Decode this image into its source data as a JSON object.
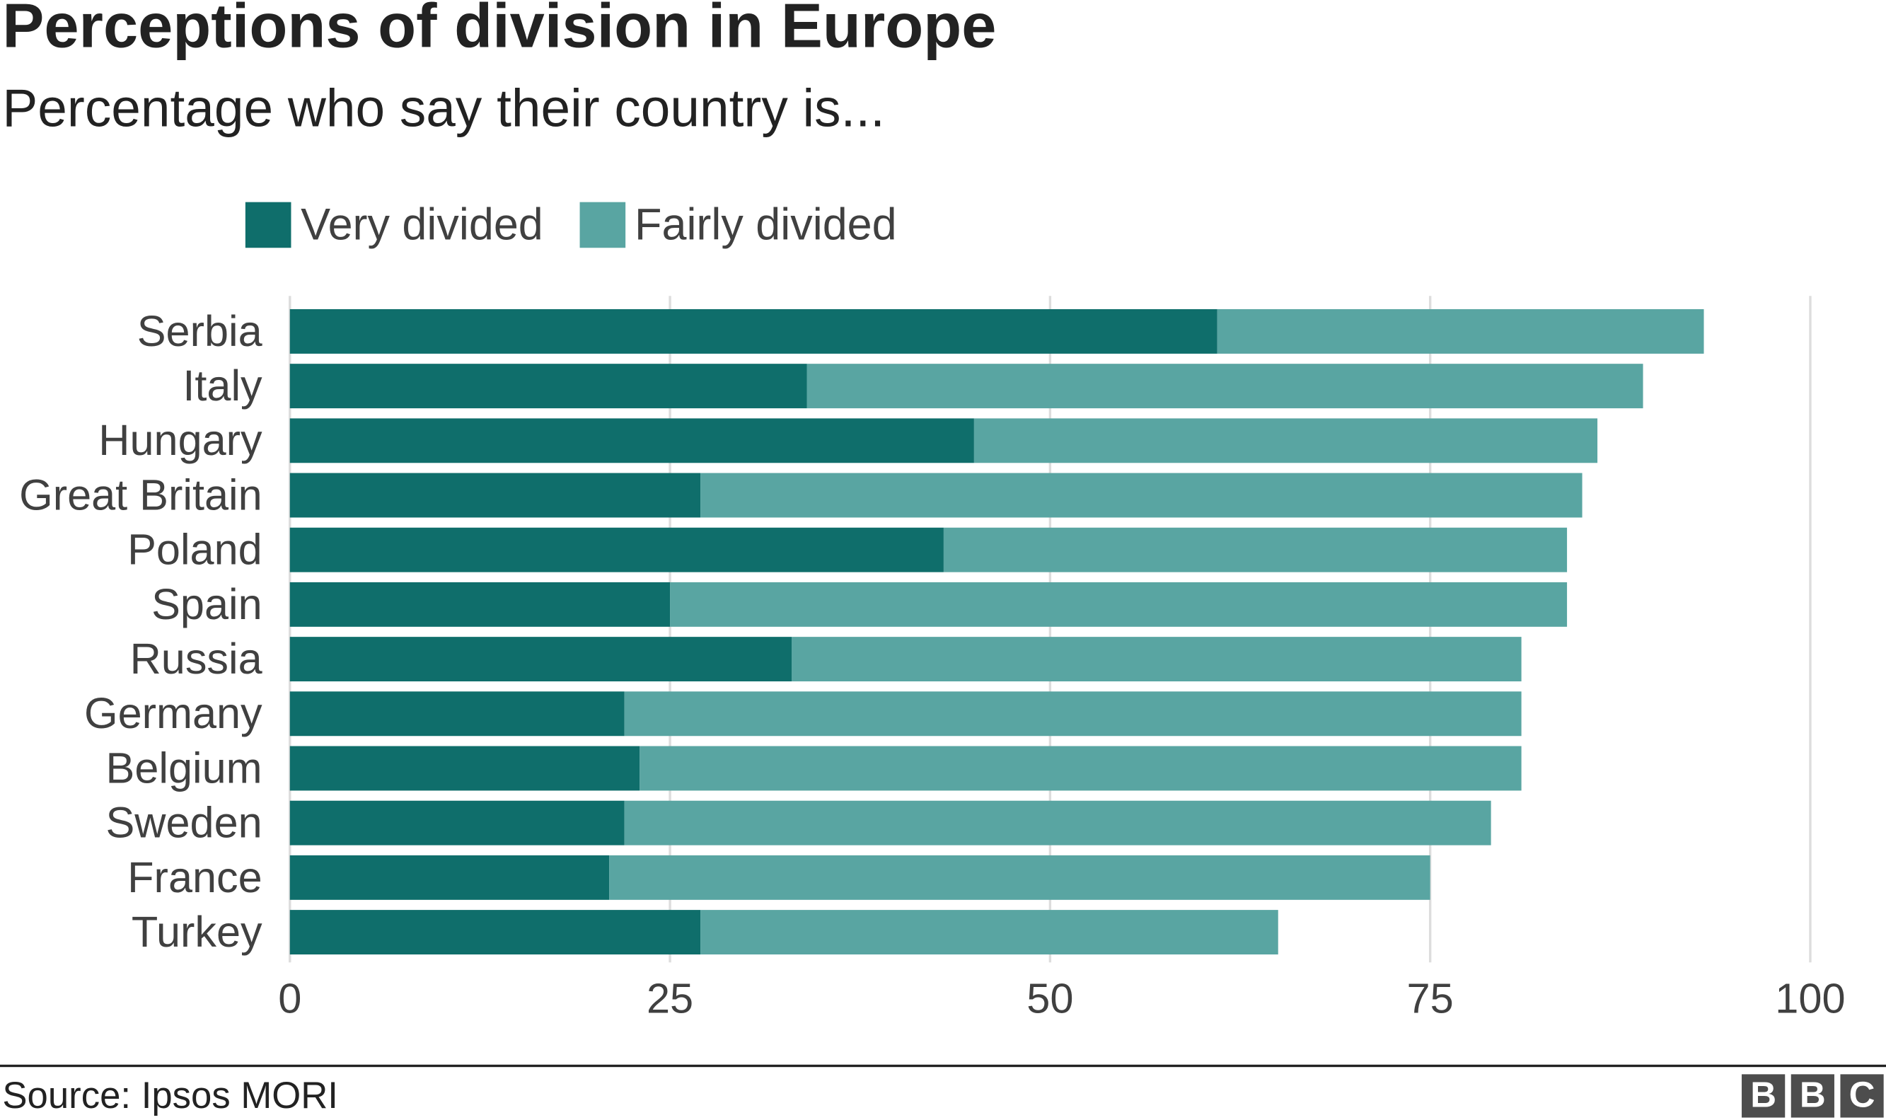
{
  "chart_data": {
    "type": "bar",
    "orientation": "horizontal",
    "stacked": true,
    "title": "Perceptions of division in Europe",
    "subtitle": "Percentage who say their country is...",
    "categories": [
      "Serbia",
      "Italy",
      "Hungary",
      "Great Britain",
      "Poland",
      "Spain",
      "Russia",
      "Germany",
      "Belgium",
      "Sweden",
      "France",
      "Turkey"
    ],
    "series": [
      {
        "name": "Very divided",
        "color": "#0f6e6b",
        "values": [
          61,
          34,
          45,
          27,
          43,
          25,
          33,
          22,
          23,
          22,
          21,
          27
        ]
      },
      {
        "name": "Fairly divided",
        "color": "#59a5a2",
        "values": [
          32,
          55,
          41,
          58,
          41,
          59,
          48,
          59,
          58,
          57,
          54,
          38
        ]
      }
    ],
    "xlim": [
      0,
      100
    ],
    "xticks": [
      "0",
      "25",
      "50",
      "75",
      "100"
    ],
    "grid": true,
    "legend_position": "top-left",
    "source": "Source: Ipsos MORI",
    "logo": "BBC"
  }
}
